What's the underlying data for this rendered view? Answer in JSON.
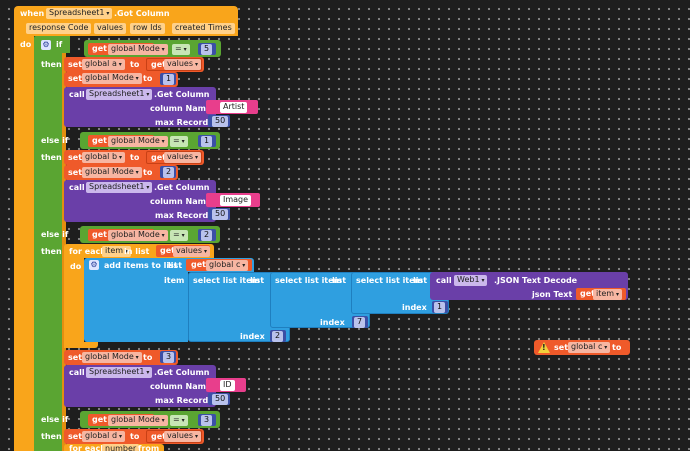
{
  "event": {
    "when": "when",
    "component": "Spreadsheet1",
    "event_name": ".Got Column",
    "params": [
      "response Code",
      "values",
      "row Ids",
      "created Times"
    ],
    "do": "do"
  },
  "kw": {
    "if": "if",
    "then": "then",
    "else_if": "else if",
    "set": "set",
    "to": "to",
    "get": "get",
    "call": "call",
    "eq": "=",
    "for_each": "for each",
    "in_list": "in list",
    "do": "do",
    "add_items": "add items to list",
    "list": "list",
    "item": "item",
    "select_list_item": "select list item",
    "index": "index",
    "json_text_decode": ".JSON Text Decode",
    "json_text": "json Text"
  },
  "vars": {
    "global_mode": "global Mode",
    "global_a": "global a",
    "global_b": "global b",
    "global_c": "global c",
    "global_d": "global d",
    "values": "values",
    "item": "item",
    "number": "number"
  },
  "method": {
    "component": "Spreadsheet1",
    "name": ".Get Column",
    "column_name": "column Name",
    "max_record": "max Record"
  },
  "web": {
    "component": "Web1"
  },
  "numbers": {
    "n5": "5",
    "n1": "1",
    "n2": "2",
    "n3": "3",
    "n7": "7",
    "n50": "50"
  },
  "strings": {
    "artist": "Artist",
    "image": "Image",
    "id": "ID"
  },
  "partial": {
    "from": "from"
  },
  "colors": {
    "event_orange": "#f9a51b",
    "logic_green": "#5aa532",
    "var_red": "#ef5a2a",
    "component_purple": "#6a3fa8",
    "math_navy": "#3b4fa6",
    "list_blue": "#2f9fe0",
    "text_pink": "#e83e8c"
  }
}
